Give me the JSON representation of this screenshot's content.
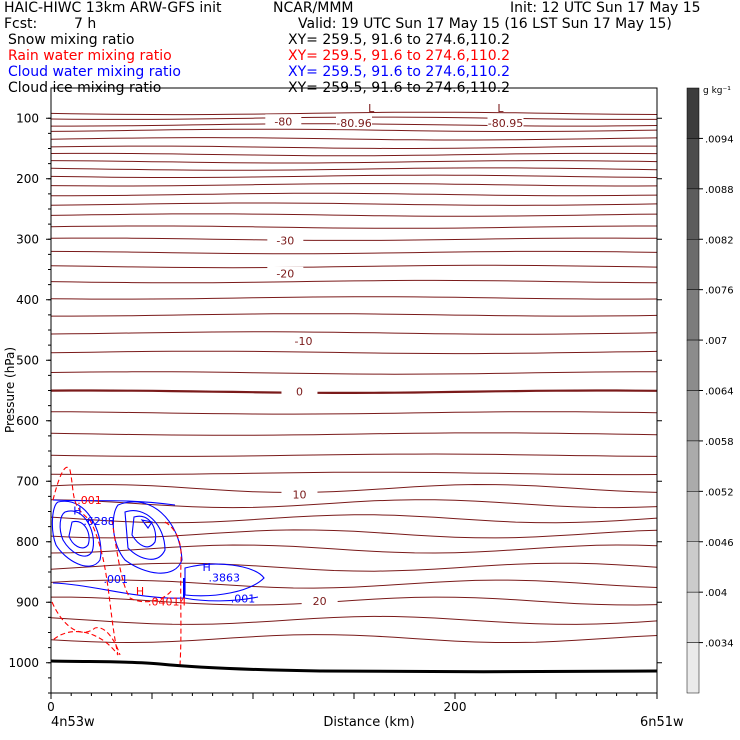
{
  "header": {
    "title": "HAIC-HIWC 13km ARW-GFS init",
    "center": "NCAR/MMM",
    "init": "Init: 12 UTC Sun 17 May 15",
    "fcst_label": "Fcst:",
    "fcst_value": "7 h",
    "valid": "Valid: 19 UTC Sun 17 May 15 (16 LST Sun 17 May 15)"
  },
  "fields": [
    {
      "name": "Snow mixing ratio",
      "range": "XY= 259.5, 91.6 to 274.6,110.2",
      "color": "#000000"
    },
    {
      "name": "Rain water mixing ratio",
      "range": "XY= 259.5, 91.6 to 274.6,110.2",
      "color": "#ff0000"
    },
    {
      "name": "Cloud water mixing ratio",
      "range": "XY= 259.5, 91.6 to 274.6,110.2",
      "color": "#0000ff"
    },
    {
      "name": "Cloud ice mixing ratio",
      "range": "XY= 259.5, 91.6 to 274.6,110.2",
      "color": "#000000"
    }
  ],
  "chart_data": {
    "type": "contour",
    "ylabel": "Pressure (hPa)",
    "xlabel": "Distance (km)",
    "x_ticks": [
      "0",
      "200"
    ],
    "xlim": [
      0,
      300
    ],
    "y_ticks": [
      "100",
      "200",
      "300",
      "400",
      "500",
      "600",
      "700",
      "800",
      "900",
      "1000"
    ],
    "ylim": [
      1050,
      50
    ],
    "start_point": "4n53w",
    "end_point": "6n51w",
    "temperature_labels": [
      {
        "text": "-80",
        "x": 115,
        "p": 105
      },
      {
        "text": "-80.96",
        "x": 150,
        "p": 108
      },
      {
        "text": "-80.95",
        "x": 225,
        "p": 108
      },
      {
        "text": "-30",
        "x": 116,
        "p": 302
      },
      {
        "text": "-20",
        "x": 116,
        "p": 357
      },
      {
        "text": "-10",
        "x": 125,
        "p": 468
      },
      {
        "text": "0",
        "x": 123,
        "p": 552
      },
      {
        "text": "10",
        "x": 123,
        "p": 722
      },
      {
        "text": "20",
        "x": 133,
        "p": 898
      }
    ],
    "extrema": [
      {
        "text": "L",
        "x": 157,
        "p": 90,
        "color": "#7a1a1a"
      },
      {
        "text": "L",
        "x": 221,
        "p": 90,
        "color": "#7a1a1a"
      },
      {
        "text": "H",
        "x": 11,
        "p": 755,
        "color": "#0000ff"
      },
      {
        "text": ".6288",
        "x": 16,
        "p": 772,
        "color": "#0000ff"
      },
      {
        "text": "H",
        "x": 75,
        "p": 848,
        "color": "#0000ff"
      },
      {
        "text": ".3863",
        "x": 78,
        "p": 866,
        "color": "#0000ff"
      },
      {
        "text": "H",
        "x": 42,
        "p": 888,
        "color": "#ff0000"
      },
      {
        "text": ".04014",
        "x": 48,
        "p": 905,
        "color": "#ff0000"
      },
      {
        "text": ".001",
        "x": 13,
        "p": 738,
        "color": "#ff0000"
      }
    ],
    "minor_labels": [
      {
        "text": ".001",
        "x": 26,
        "p": 868,
        "color": "#0000ff"
      },
      {
        "text": ".001",
        "x": 89,
        "p": 900,
        "color": "#0000ff"
      }
    ],
    "colorbar": {
      "unit": "g kg⁻¹",
      "ticks": [
        ".0094",
        ".0088",
        ".0082",
        ".0076",
        ".007",
        ".0064",
        ".0058",
        ".0052",
        ".0046",
        ".004",
        ".0034"
      ]
    },
    "colors": {
      "temperature": "#7a1a1a",
      "rain": "#ff0000",
      "cloud_water": "#0000ff",
      "terrain": "#000000"
    }
  }
}
